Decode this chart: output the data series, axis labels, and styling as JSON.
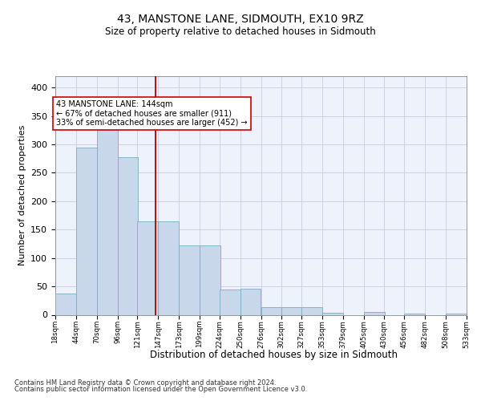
{
  "title": "43, MANSTONE LANE, SIDMOUTH, EX10 9RZ",
  "subtitle": "Size of property relative to detached houses in Sidmouth",
  "xlabel": "Distribution of detached houses by size in Sidmouth",
  "ylabel": "Number of detached properties",
  "bar_left_edges": [
    18,
    44,
    70,
    96,
    121,
    147,
    173,
    199,
    224,
    250,
    276,
    302,
    327,
    353,
    379,
    405,
    430,
    456,
    482,
    508
  ],
  "bar_heights": [
    37,
    295,
    325,
    278,
    165,
    165,
    122,
    122,
    44,
    46,
    13,
    14,
    14,
    4,
    0,
    5,
    0,
    2,
    0,
    2
  ],
  "bin_width": 26,
  "bar_color": "#c8d8ea",
  "bar_edge_color": "#7aaac8",
  "property_line_x": 144,
  "property_line_color": "#aa0000",
  "annotation_text": "43 MANSTONE LANE: 144sqm\n← 67% of detached houses are smaller (911)\n33% of semi-detached houses are larger (452) →",
  "annotation_box_color": "#ffffff",
  "annotation_box_edge_color": "#cc0000",
  "ylim": [
    0,
    420
  ],
  "yticks": [
    0,
    50,
    100,
    150,
    200,
    250,
    300,
    350,
    400
  ],
  "x_tick_labels": [
    "18sqm",
    "44sqm",
    "70sqm",
    "96sqm",
    "121sqm",
    "147sqm",
    "173sqm",
    "199sqm",
    "224sqm",
    "250sqm",
    "276sqm",
    "302sqm",
    "327sqm",
    "353sqm",
    "379sqm",
    "405sqm",
    "430sqm",
    "456sqm",
    "482sqm",
    "508sqm",
    "533sqm"
  ],
  "grid_color": "#c8cce0",
  "bg_color": "#eef2fa",
  "footnote_line1": "Contains HM Land Registry data © Crown copyright and database right 2024.",
  "footnote_line2": "Contains public sector information licensed under the Open Government Licence v3.0."
}
